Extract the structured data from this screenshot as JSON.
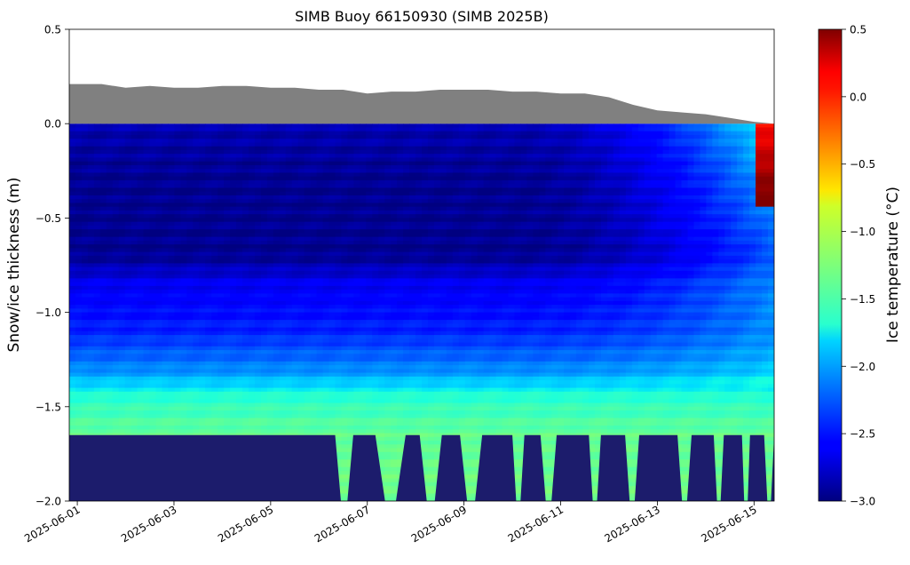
{
  "chart_data": {
    "type": "heatmap",
    "title": "SIMB Buoy 66150930 (SIMB 2025B)",
    "ylabel": "Snow/ice thickness (m)",
    "ylim": [
      -2.0,
      0.5
    ],
    "xlim": [
      "2025-05-31T20:00",
      "2025-06-15T10:00"
    ],
    "x_ticks": [
      "2025-06-01",
      "2025-06-03",
      "2025-06-05",
      "2025-06-07",
      "2025-06-09",
      "2025-06-11",
      "2025-06-13",
      "2025-06-15"
    ],
    "y_ticks": [
      "0.5",
      "0.0",
      "−0.5",
      "−1.0",
      "−1.5",
      "−2.0"
    ],
    "colorbar": {
      "label": "Ice temperature (°C)",
      "range": [
        -3.0,
        0.5
      ],
      "ticks": [
        "0.5",
        "0.0",
        "−0.5",
        "−1.0",
        "−1.5",
        "−2.0",
        "−2.5",
        "−3.0"
      ],
      "colormap": "jet"
    },
    "snow_surface": {
      "color": "#808080",
      "x": [
        "2025-05-31T20:00",
        "2025-06-01T12:00",
        "2025-06-02T00:00",
        "2025-06-02T12:00",
        "2025-06-03T00:00",
        "2025-06-03T12:00",
        "2025-06-04T00:00",
        "2025-06-04T12:00",
        "2025-06-05T00:00",
        "2025-06-05T12:00",
        "2025-06-06T00:00",
        "2025-06-06T12:00",
        "2025-06-07T00:00",
        "2025-06-07T12:00",
        "2025-06-08T00:00",
        "2025-06-08T12:00",
        "2025-06-09T00:00",
        "2025-06-09T12:00",
        "2025-06-10T00:00",
        "2025-06-10T12:00",
        "2025-06-11T00:00",
        "2025-06-11T12:00",
        "2025-06-12T00:00",
        "2025-06-12T12:00",
        "2025-06-13T00:00",
        "2025-06-13T12:00",
        "2025-06-14T00:00",
        "2025-06-14T12:00",
        "2025-06-15T00:00",
        "2025-06-15T10:00"
      ],
      "y": [
        0.21,
        0.21,
        0.19,
        0.2,
        0.19,
        0.19,
        0.2,
        0.2,
        0.19,
        0.19,
        0.18,
        0.18,
        0.16,
        0.17,
        0.17,
        0.18,
        0.18,
        0.18,
        0.17,
        0.17,
        0.16,
        0.16,
        0.14,
        0.1,
        0.07,
        0.06,
        0.05,
        0.03,
        0.01,
        0.0
      ]
    },
    "ocean_layer": {
      "color": "#1c1c6c",
      "top": -1.65,
      "notches": [
        [
          "2025-06-06T08:00",
          "2025-06-06T17:00"
        ],
        [
          "2025-06-07T04:00",
          "2025-06-07T19:00"
        ],
        [
          "2025-06-08T02:00",
          "2025-06-08T13:00"
        ],
        [
          "2025-06-08T22:00",
          "2025-06-09T09:00"
        ],
        [
          "2025-06-10T00:00",
          "2025-06-10T06:00"
        ],
        [
          "2025-06-10T14:00",
          "2025-06-10T22:00"
        ],
        [
          "2025-06-11T14:00",
          "2025-06-11T20:00"
        ],
        [
          "2025-06-12T08:00",
          "2025-06-12T15:00"
        ],
        [
          "2025-06-13T10:00",
          "2025-06-13T17:00"
        ],
        [
          "2025-06-14T04:00",
          "2025-06-14T09:00"
        ],
        [
          "2025-06-14T18:00",
          "2025-06-14T22:00"
        ],
        [
          "2025-06-15T05:00",
          "2025-06-15T10:00"
        ]
      ]
    },
    "temperature_grid": {
      "time_steps": 114,
      "depth_step_m": 0.02,
      "depth_top_m": 0.0,
      "depth_bottom_m": -2.0,
      "profile_temps_c": [
        [
          0.0,
          -2.85
        ],
        [
          -0.3,
          -2.95
        ],
        [
          -0.7,
          -2.95
        ],
        [
          -0.85,
          -2.65
        ],
        [
          -1.1,
          -2.45
        ],
        [
          -1.3,
          -2.1
        ],
        [
          -1.45,
          -1.6
        ],
        [
          -1.65,
          -1.35
        ],
        [
          -2.0,
          -1.3
        ]
      ],
      "warm_front": "2025-06-10T00:00",
      "surface_melt_onset": "2025-06-15T00:00"
    }
  }
}
